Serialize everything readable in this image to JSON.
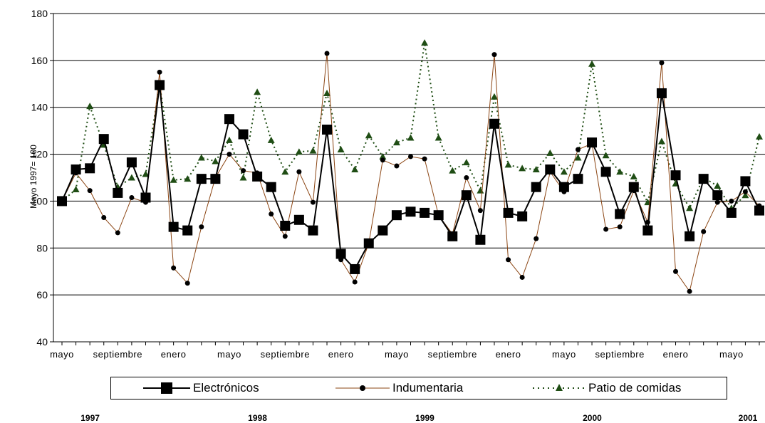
{
  "chart_data": {
    "type": "line",
    "ylabel": "Mayo 1997= 100",
    "ylim": [
      40,
      180
    ],
    "yticks": [
      40,
      60,
      80,
      100,
      120,
      140,
      160,
      180
    ],
    "grid": true,
    "legend_position": "bottom",
    "x_tick_labels": [
      {
        "index": 0,
        "label": "mayo"
      },
      {
        "index": 4,
        "label": "septiembre"
      },
      {
        "index": 8,
        "label": "enero"
      },
      {
        "index": 12,
        "label": "mayo"
      },
      {
        "index": 16,
        "label": "septiembre"
      },
      {
        "index": 20,
        "label": "enero"
      },
      {
        "index": 24,
        "label": "mayo"
      },
      {
        "index": 28,
        "label": "septiembre"
      },
      {
        "index": 32,
        "label": "enero"
      },
      {
        "index": 36,
        "label": "mayo"
      },
      {
        "index": 40,
        "label": "septiembre"
      },
      {
        "index": 44,
        "label": "enero"
      },
      {
        "index": 48,
        "label": "mayo"
      }
    ],
    "year_labels": [
      {
        "index": 1,
        "label": "1997"
      },
      {
        "index": 13,
        "label": "1998"
      },
      {
        "index": 25,
        "label": "1999"
      },
      {
        "index": 37,
        "label": "2000"
      },
      {
        "index": 49,
        "label": "2001"
      }
    ],
    "series": [
      {
        "name": "Electrónicos",
        "color": "#000000",
        "marker": "square",
        "line": "solid",
        "values": [
          100,
          113.5,
          114,
          126.5,
          103.5,
          116.5,
          101.5,
          149.5,
          89,
          87.5,
          109.5,
          109.5,
          135,
          128.5,
          110.5,
          106,
          89.5,
          92,
          87.5,
          130.5,
          77.5,
          71,
          82,
          87.5,
          94,
          95.5,
          95,
          94,
          85,
          102.5,
          83.5,
          133,
          95,
          93.5,
          106,
          113.5,
          106,
          109.5,
          125,
          112.5,
          94.5,
          106,
          87.5,
          146,
          111,
          85,
          109.5,
          102.5,
          95,
          108.5,
          96
        ]
      },
      {
        "name": "Indumentaria",
        "color": "#8B4513",
        "marker": "circle",
        "line": "solid",
        "values": [
          100,
          112,
          104.5,
          93,
          86.5,
          101.5,
          99.5,
          155,
          71.5,
          65,
          89,
          110,
          120,
          113,
          112,
          94.5,
          85,
          112.5,
          99.5,
          163,
          75,
          65.5,
          82,
          117.5,
          115,
          119,
          118,
          94,
          86,
          110,
          96,
          162.5,
          75,
          67.5,
          84,
          112.5,
          104,
          122,
          124.5,
          88,
          89,
          104.5,
          91,
          159,
          70,
          61.5,
          87,
          99.5,
          100,
          104,
          98
        ]
      },
      {
        "name": "Patio de comidas",
        "color": "#1f4d14",
        "marker": "triangle",
        "line": "dotted",
        "values": [
          100,
          105,
          140.5,
          124,
          106,
          110,
          111.5,
          150,
          109,
          109.5,
          118.5,
          117,
          126,
          110,
          146.5,
          126,
          112.5,
          121,
          121.5,
          146,
          122,
          113.5,
          128,
          119,
          125,
          127,
          167.5,
          127,
          113,
          116.5,
          104.5,
          144.5,
          115.5,
          114,
          113.5,
          120.5,
          112.5,
          118.5,
          158.5,
          119.5,
          112.5,
          110.5,
          99.5,
          125.5,
          107.5,
          97,
          110,
          106.5,
          97,
          102.5,
          127.5
        ]
      }
    ]
  }
}
